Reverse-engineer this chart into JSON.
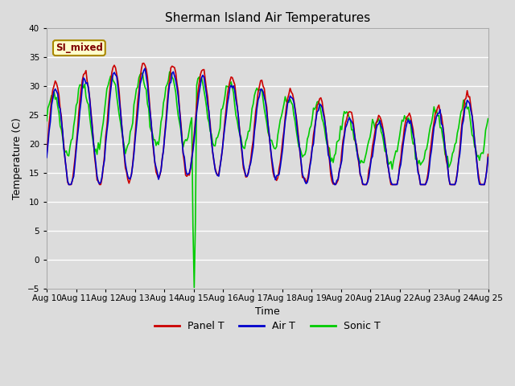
{
  "title": "Sherman Island Air Temperatures",
  "xlabel": "Time",
  "ylabel": "Temperature (C)",
  "ylim": [
    -5,
    40
  ],
  "yticks": [
    -5,
    0,
    5,
    10,
    15,
    20,
    25,
    30,
    35,
    40
  ],
  "x_tick_labels": [
    "Aug 10",
    "Aug 11",
    "Aug 12",
    "Aug 13",
    "Aug 14",
    "Aug 15",
    "Aug 16",
    "Aug 17",
    "Aug 18",
    "Aug 19",
    "Aug 20",
    "Aug 21",
    "Aug 22",
    "Aug 23",
    "Aug 24",
    "Aug 25"
  ],
  "annotation_text": "SI_mixed",
  "background_color": "#dcdcdc",
  "grid_color": "#ffffff",
  "colors": {
    "panel": "#cc0000",
    "air": "#0000cc",
    "sonic": "#00cc00"
  },
  "n_points": 360,
  "days": 15,
  "spike_day": 5.0,
  "spike_value": -4.8,
  "figsize": [
    6.4,
    4.8
  ],
  "dpi": 100
}
